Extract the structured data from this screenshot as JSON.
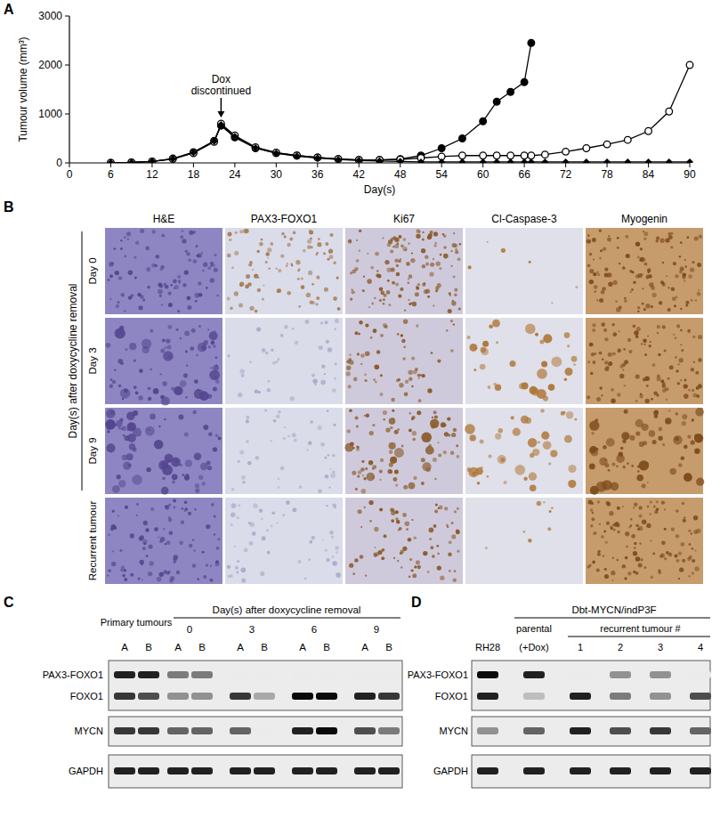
{
  "chart_data": {
    "type": "line",
    "panel_label": "A",
    "x_label": "Day(s)",
    "y_label": "Tumour volume (mm³)",
    "xlim": [
      0,
      90
    ],
    "xticks": [
      0,
      6,
      12,
      18,
      24,
      30,
      36,
      42,
      48,
      54,
      60,
      66,
      72,
      78,
      84,
      90
    ],
    "ylim": [
      0,
      3000
    ],
    "yticks": [
      0,
      1000,
      2000,
      3000
    ],
    "grid": false,
    "x": [
      6,
      9,
      12,
      15,
      18,
      21,
      22,
      24,
      27,
      30,
      33,
      36,
      39,
      42,
      45,
      48,
      51,
      54,
      57,
      60,
      62,
      64,
      66,
      67,
      69,
      72,
      75,
      78,
      81,
      84,
      87,
      90
    ],
    "series": [
      {
        "color": "#000000",
        "marker": "filled-circle",
        "values": [
          0,
          10,
          30,
          90,
          220,
          450,
          760,
          520,
          300,
          200,
          150,
          110,
          80,
          60,
          60,
          80,
          150,
          300,
          500,
          850,
          1250,
          1450,
          1650,
          2450,
          null,
          null,
          null,
          null,
          null,
          null,
          null,
          null
        ]
      },
      {
        "color": "#000000",
        "marker": "open-circle",
        "values": [
          0,
          10,
          30,
          80,
          200,
          430,
          800,
          560,
          320,
          210,
          150,
          110,
          80,
          60,
          60,
          70,
          100,
          130,
          150,
          150,
          150,
          150,
          150,
          150,
          170,
          230,
          300,
          380,
          470,
          650,
          1050,
          2000
        ]
      },
      {
        "color": "#000000",
        "marker": "diamond",
        "values": [
          0,
          10,
          30,
          80,
          210,
          440,
          780,
          540,
          310,
          200,
          140,
          100,
          70,
          50,
          40,
          30,
          20,
          20,
          20,
          20,
          20,
          20,
          20,
          20,
          20,
          20,
          20,
          20,
          20,
          20,
          20,
          20
        ]
      }
    ],
    "annotations": [
      {
        "text": "Dox discontinued",
        "x": 22,
        "y": 800
      }
    ]
  },
  "figure": {
    "histology": {
      "panel_label": "B",
      "columns": [
        "H&E",
        "PAX3-FOXO1",
        "Ki67",
        "Cl-Caspase-3",
        "Myogenin"
      ],
      "group_label": "Day(s) after doxycycline removal",
      "rows": [
        "Day 0",
        "Day 3",
        "Day 9",
        "Recurrent tumour"
      ]
    },
    "blot_c": {
      "panel_label": "C",
      "primary_label": "Primary tumours",
      "header": "Day(s) after doxycycline removal",
      "days": [
        0,
        3,
        6,
        9
      ],
      "lane_labels": [
        "A",
        "B"
      ],
      "bands": [
        {
          "protein": "PAX3-FOXO1",
          "intensity": [
            0.9,
            0.9,
            0.5,
            0.5,
            0,
            0,
            0,
            0,
            0,
            0
          ]
        },
        {
          "protein": "FOXO1",
          "intensity": [
            0.8,
            0.7,
            0.4,
            0.4,
            0.8,
            0.3,
            1,
            1,
            0.9,
            0.8
          ]
        },
        {
          "protein": "MYCN",
          "intensity": [
            0.8,
            0.8,
            0.6,
            0.6,
            0.6,
            0,
            0.9,
            1,
            0.7,
            0.5
          ]
        },
        {
          "protein": "GAPDH",
          "intensity": [
            0.9,
            0.9,
            0.9,
            0.9,
            0.9,
            0.9,
            0.9,
            0.9,
            0.9,
            0.9
          ]
        }
      ]
    },
    "blot_d": {
      "panel_label": "D",
      "title": "Dbt-MYCN/indP3F",
      "control": "RH28",
      "parental": "parental",
      "parental_note": "(+Dox)",
      "recurrent_label": "recurrent tumour #",
      "recurrent": [
        1,
        2,
        3,
        4
      ],
      "bands": [
        {
          "protein": "PAX3-FOXO1",
          "intensity": [
            1,
            0.9,
            0,
            0.4,
            0.4,
            0
          ]
        },
        {
          "protein": "FOXO1",
          "intensity": [
            0.9,
            0.2,
            0.9,
            0.5,
            0.4,
            0.7
          ]
        },
        {
          "protein": "MYCN",
          "intensity": [
            0.4,
            0.6,
            0.9,
            0.7,
            0.8,
            0.6
          ]
        },
        {
          "protein": "GAPDH",
          "intensity": [
            0.9,
            0.9,
            0.9,
            0.9,
            0.9,
            0.9
          ]
        }
      ]
    }
  }
}
